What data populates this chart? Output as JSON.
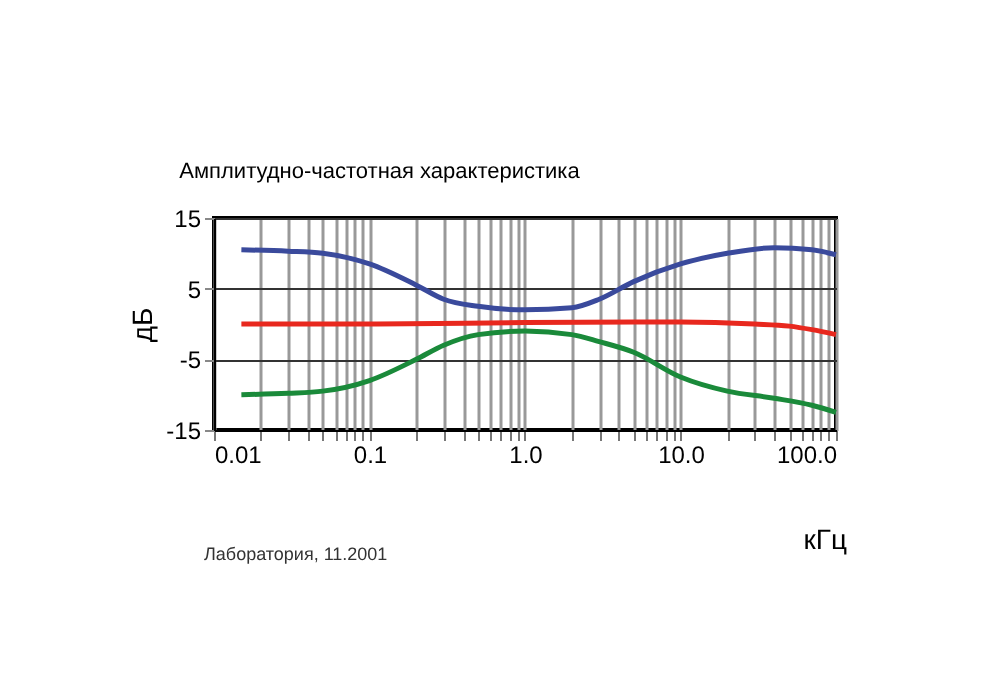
{
  "chart_data": {
    "type": "line",
    "title": "Амплитудно-частотная характеристика",
    "xlabel": "кГц",
    "ylabel": "дБ",
    "annotations": [
      "Лаборатория, 11.2001"
    ],
    "log": "x",
    "grid": true,
    "marker": "none",
    "line_style": "solid",
    "legend": false,
    "xlim": [
      0.01,
      100
    ],
    "ylim": [
      -15,
      15
    ],
    "yticks": [
      -15,
      -5,
      5,
      15
    ],
    "xticks": [
      {
        "value": 0.01,
        "label": "0.01"
      },
      {
        "value": 0.02,
        "label": null
      },
      {
        "value": 0.03,
        "label": null
      },
      {
        "value": 0.04,
        "label": null
      },
      {
        "value": 0.05,
        "label": null
      },
      {
        "value": 0.06,
        "label": null
      },
      {
        "value": 0.07,
        "label": null
      },
      {
        "value": 0.08,
        "label": null
      },
      {
        "value": 0.09,
        "label": null
      },
      {
        "value": 0.1,
        "label": "0.1"
      },
      {
        "value": 0.2,
        "label": null
      },
      {
        "value": 0.3,
        "label": null
      },
      {
        "value": 0.4,
        "label": null
      },
      {
        "value": 0.5,
        "label": null
      },
      {
        "value": 0.6,
        "label": null
      },
      {
        "value": 0.7,
        "label": null
      },
      {
        "value": 0.8,
        "label": null
      },
      {
        "value": 0.9,
        "label": null
      },
      {
        "value": 1,
        "label": "1.0"
      },
      {
        "value": 2,
        "label": null
      },
      {
        "value": 3,
        "label": null
      },
      {
        "value": 4,
        "label": null
      },
      {
        "value": 5,
        "label": null
      },
      {
        "value": 6,
        "label": null
      },
      {
        "value": 7,
        "label": null
      },
      {
        "value": 8,
        "label": null
      },
      {
        "value": 9,
        "label": null
      },
      {
        "value": 10,
        "label": "10.0"
      },
      {
        "value": 20,
        "label": null
      },
      {
        "value": 30,
        "label": null
      },
      {
        "value": 40,
        "label": null
      },
      {
        "value": 50,
        "label": null
      },
      {
        "value": 60,
        "label": null
      },
      {
        "value": 70,
        "label": null
      },
      {
        "value": 80,
        "label": null
      },
      {
        "value": 90,
        "label": null
      },
      {
        "value": 100,
        "label": "100.0"
      }
    ],
    "series": [
      {
        "color": "#3a4a9c",
        "x": [
          0.015,
          0.03,
          0.05,
          0.1,
          0.2,
          0.3,
          0.5,
          1,
          2,
          3,
          5,
          10,
          20,
          40,
          70,
          100
        ],
        "values": [
          10.5,
          10.3,
          10,
          8.5,
          5.5,
          3.5,
          2.5,
          2,
          2.3,
          3.5,
          6,
          8.5,
          10,
          10.8,
          10.5,
          9.8
        ]
      },
      {
        "color": "#e8281e",
        "x": [
          0.015,
          0.1,
          1,
          10,
          30,
          50,
          70,
          100
        ],
        "values": [
          0,
          0,
          0.2,
          0.3,
          0,
          -0.3,
          -0.8,
          -1.5
        ]
      },
      {
        "color": "#1a8a3a",
        "x": [
          0.015,
          0.03,
          0.05,
          0.1,
          0.2,
          0.3,
          0.5,
          1,
          2,
          3,
          5,
          10,
          20,
          40,
          70,
          100
        ],
        "values": [
          -10,
          -9.8,
          -9.5,
          -8,
          -5,
          -3,
          -1.5,
          -1,
          -1.5,
          -2.5,
          -4,
          -7.5,
          -9.5,
          -10.5,
          -11.5,
          -12.5
        ]
      }
    ]
  }
}
